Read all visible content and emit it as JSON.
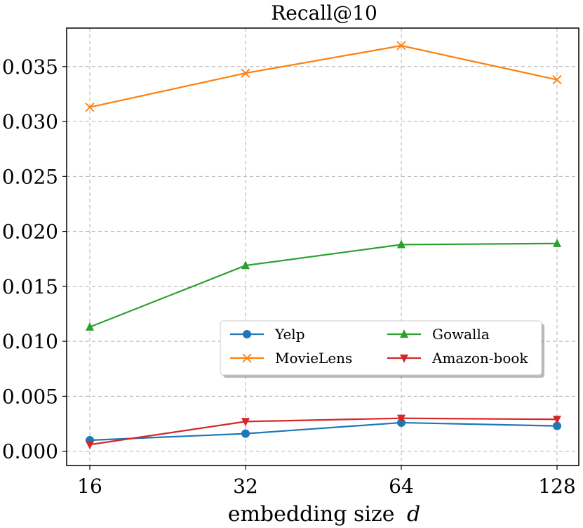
{
  "chart_data": {
    "type": "line",
    "title": "Recall@10",
    "xlabel": "embedding size",
    "xlabel_var": "d",
    "categories": [
      "16",
      "32",
      "64",
      "128"
    ],
    "ylim": [
      -0.0013,
      0.0385
    ],
    "yticks": [
      "0.000",
      "0.005",
      "0.010",
      "0.015",
      "0.020",
      "0.025",
      "0.030",
      "0.035"
    ],
    "ytick_values": [
      0.0,
      0.005,
      0.01,
      0.015,
      0.02,
      0.025,
      0.03,
      0.035
    ],
    "grid": true,
    "legend_position": "center-right",
    "series": [
      {
        "name": "Yelp",
        "color": "#1f77b4",
        "marker": "circle",
        "values": [
          0.001,
          0.0016,
          0.0026,
          0.0023
        ]
      },
      {
        "name": "MovieLens",
        "color": "#ff7f0e",
        "marker": "x",
        "values": [
          0.0313,
          0.0344,
          0.0369,
          0.0338
        ]
      },
      {
        "name": "Gowalla",
        "color": "#2ca02c",
        "marker": "triangle-up",
        "values": [
          0.0113,
          0.0169,
          0.0188,
          0.0189
        ]
      },
      {
        "name": "Amazon-book",
        "color": "#d62728",
        "marker": "triangle-down",
        "values": [
          0.0006,
          0.0027,
          0.003,
          0.0029
        ]
      }
    ]
  }
}
